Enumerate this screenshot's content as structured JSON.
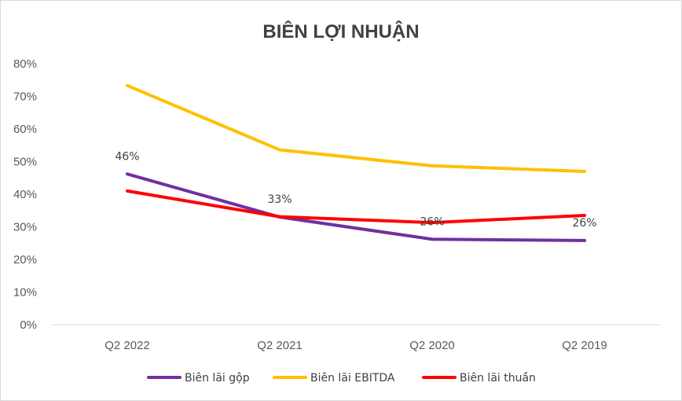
{
  "chart_data": {
    "type": "line",
    "title": "BIÊN LỢI NHUẬN",
    "categories": [
      "Q2 2022",
      "Q2 2021",
      "Q2 2020",
      "Q2 2019"
    ],
    "y_ticks": [
      "0%",
      "10%",
      "20%",
      "30%",
      "40%",
      "50%",
      "60%",
      "70%",
      "80%"
    ],
    "ylim": [
      0,
      80
    ],
    "xlabel": "",
    "ylabel": "",
    "grid": false,
    "legend_position": "bottom",
    "series": [
      {
        "name": "Biên lãi gộp",
        "color": "#7030A0",
        "values": [
          46.2,
          33.0,
          26.2,
          25.8
        ],
        "data_labels": [
          "46%",
          "33%",
          "26%",
          "26%"
        ]
      },
      {
        "name": "Biên lãi EBITDA",
        "color": "#FFC000",
        "values": [
          73.3,
          53.6,
          48.7,
          47.0
        ]
      },
      {
        "name": "Biên lãi thuần",
        "color": "#FF0000",
        "values": [
          41.0,
          33.1,
          31.3,
          33.5
        ]
      }
    ]
  }
}
